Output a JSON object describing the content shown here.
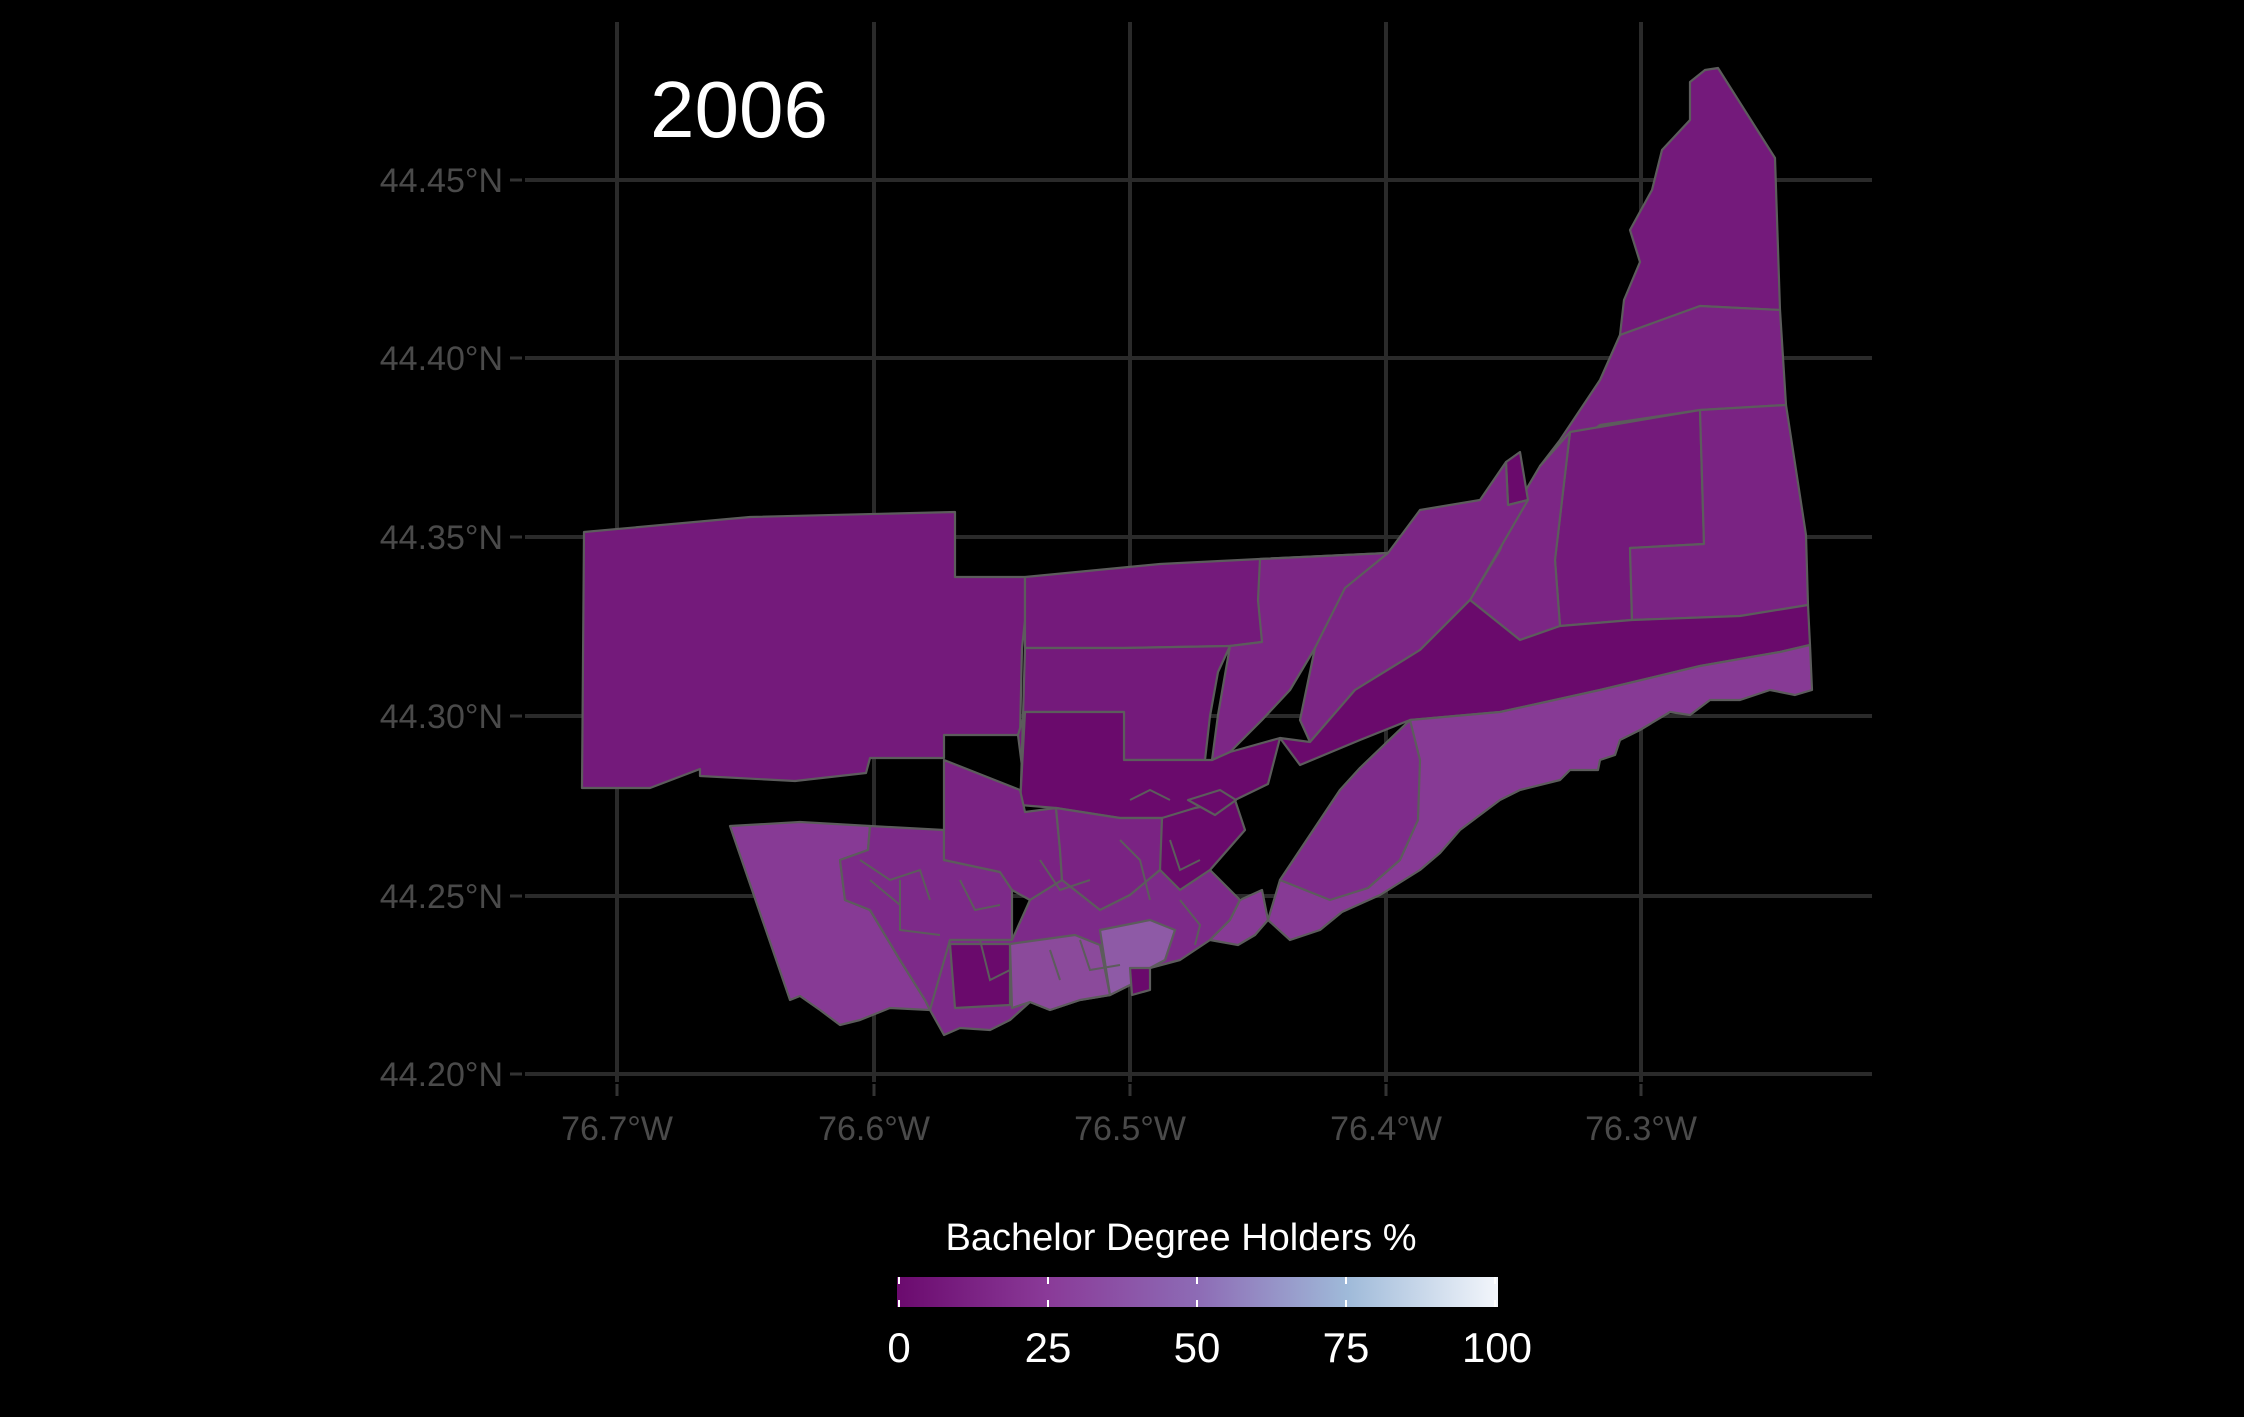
{
  "map": {
    "title": "2006",
    "y_axis_labels": [
      "44.45°N",
      "44.40°N",
      "44.35°N",
      "44.30°N",
      "44.25°N",
      "44.20°N"
    ],
    "x_axis_labels": [
      "76.7°W",
      "76.6°W",
      "76.5°W",
      "76.4°W",
      "76.3°W"
    ]
  },
  "legend": {
    "title": "Bachelor Degree Holders %",
    "labels": [
      "0",
      "25",
      "50",
      "75",
      "100"
    ],
    "colors": [
      "#6b0a6e",
      "#8a3a98",
      "#8d6bb5",
      "#9fbad9",
      "#f3f6fb"
    ]
  },
  "colors": {
    "background": "#000000",
    "grid": "#2a2a2a",
    "axis_text": "#4a4a4a",
    "boundary": "#5c5c5c",
    "fill_dark": "#6a0a6c",
    "fill_mid": "#751b7c",
    "fill_light": "#8b3f98"
  }
}
